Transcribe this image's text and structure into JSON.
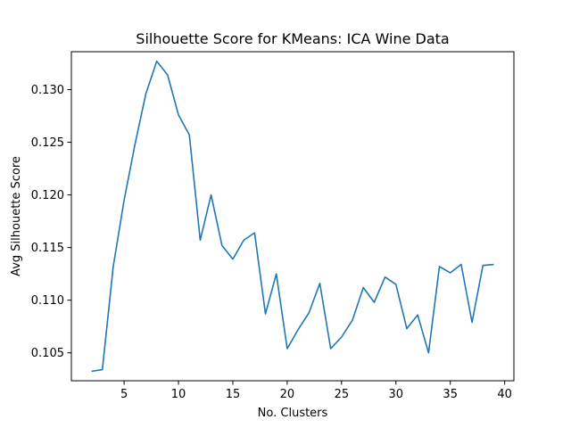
{
  "chart_data": {
    "type": "line",
    "title": "Silhouette Score for KMeans: ICA Wine Data",
    "xlabel": "No. Clusters",
    "ylabel": "Avg Silhouette Score",
    "xlim": [
      0.15,
      40.85
    ],
    "ylim": [
      0.10235,
      0.1336
    ],
    "xticks": [
      5,
      10,
      15,
      20,
      25,
      30,
      35,
      40
    ],
    "yticks": [
      0.105,
      0.11,
      0.115,
      0.12,
      0.125,
      0.13
    ],
    "ytick_labels": [
      "0.105",
      "0.110",
      "0.115",
      "0.120",
      "0.125",
      "0.130"
    ],
    "grid": false,
    "line_color": "#1f77b4",
    "series": [
      {
        "x": [
          2,
          3,
          4,
          5,
          6,
          7,
          8,
          9,
          10,
          11,
          12,
          13,
          14,
          15,
          16,
          17,
          18,
          19,
          20,
          21,
          22,
          23,
          24,
          25,
          26,
          27,
          28,
          29,
          30,
          31,
          32,
          33,
          34,
          35,
          36,
          37,
          38,
          39
        ],
        "values": [
          0.10325,
          0.1034,
          0.1132,
          0.1195,
          0.1248,
          0.1296,
          0.1327,
          0.1314,
          0.1276,
          0.1257,
          0.1157,
          0.12,
          0.1152,
          0.1139,
          0.1157,
          0.1164,
          0.1087,
          0.1125,
          0.1054,
          0.1072,
          0.1088,
          0.1116,
          0.1054,
          0.1065,
          0.1081,
          0.1112,
          0.1098,
          0.1122,
          0.1115,
          0.1073,
          0.1086,
          0.105,
          0.1132,
          0.1126,
          0.1134,
          0.1079,
          0.1133,
          0.1134
        ]
      }
    ]
  }
}
